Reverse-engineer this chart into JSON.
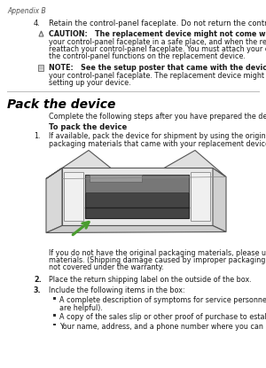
{
  "bg_color": "#ffffff",
  "text_color": "#1a1a1a",
  "header": "Appendix B",
  "item4": "Retain the control-panel faceplate. Do not return the control-panel faceplate with the device.",
  "caution_lines": [
    "CAUTION:   The replacement device might not come with a control-panel faceplate. Store",
    "your control-panel faceplate in a safe place, and when the replacement device arrives,",
    "reattach your control-panel faceplate. You must attach your control-panel faceplate to use",
    "the control-panel functions on the replacement device."
  ],
  "note_lines": [
    "NOTE:   See the setup poster that came with the device for instructions on how to attach",
    "your control-panel faceplate. The replacement device might come with instructions for",
    "setting up your device."
  ],
  "section_title": "Pack the device",
  "intro": "Complete the following steps after you have prepared the device for shipment.",
  "subhead": "To pack the device",
  "step1_lines": [
    "If available, pack the device for shipment by using the original packaging materials, or use the",
    "packaging materials that came with your replacement device."
  ],
  "para_lines": [
    "If you do not have the original packaging materials, please use other adequate packaging",
    "materials. (Shipping damage caused by improper packaging and/or improper transportation is",
    "not covered under the warranty."
  ],
  "step2": "Place the return shipping label on the outside of the box.",
  "step3": "Include the following items in the box:",
  "bullet1_lines": [
    "A complete description of symptoms for service personnel (samples of print quality problems",
    "are helpful)."
  ],
  "bullet2": "A copy of the sales slip or other proof of purchase to establish the warranty coverage period.",
  "bullet3": "Your name, address, and a phone number where you can be reached during the day.",
  "arrow_color": "#4a9c2f",
  "line_color": "#aaaaaa",
  "icon_color": "#666666"
}
